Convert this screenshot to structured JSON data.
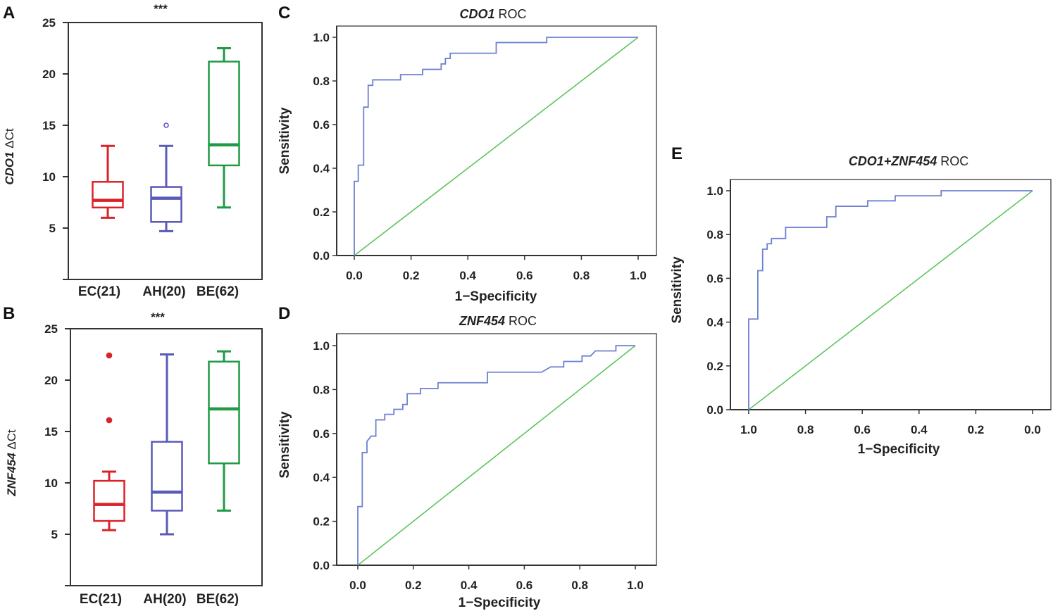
{
  "colors": {
    "EC": "#d9232a",
    "AH": "#5a5ab8",
    "BE": "#1f9a45",
    "roc": "#6e80d2",
    "ref": "#5ec45e",
    "axis": "#333333"
  },
  "chart_data": [
    {
      "panel": "A",
      "type": "box",
      "ylabel_italic": "CDO1",
      "ylabel_rest": " ΔCt",
      "significance": "***",
      "ylim": [
        0,
        25
      ],
      "yticks": [
        "5",
        "10",
        "15",
        "20",
        "25"
      ],
      "groups": [
        {
          "label": "EC(21)",
          "key": "EC",
          "whisker_low": 6.0,
          "q1": 7.0,
          "median": 7.7,
          "q3": 9.5,
          "whisker_high": 13.0,
          "outliers": [],
          "outlier_style": "filled"
        },
        {
          "label": "AH(20)",
          "key": "AH",
          "whisker_low": 4.7,
          "q1": 5.6,
          "median": 7.9,
          "q3": 9.0,
          "whisker_high": 13.0,
          "outliers": [
            15.0
          ],
          "outlier_style": "open"
        },
        {
          "label": "BE(62)",
          "key": "BE",
          "whisker_low": 7.0,
          "q1": 11.1,
          "median": 13.1,
          "q3": 21.2,
          "whisker_high": 22.5,
          "outliers": [],
          "outlier_style": "filled"
        }
      ]
    },
    {
      "panel": "B",
      "type": "box",
      "ylabel_italic": "ZNF454",
      "ylabel_rest": " ΔCt",
      "significance": "***",
      "ylim": [
        0,
        25
      ],
      "yticks": [
        "5",
        "10",
        "15",
        "20",
        "25"
      ],
      "groups": [
        {
          "label": "EC(21)",
          "key": "EC",
          "whisker_low": 5.4,
          "q1": 6.3,
          "median": 7.9,
          "q3": 10.2,
          "whisker_high": 11.1,
          "outliers": [
            16.1,
            22.4
          ],
          "outlier_style": "filled"
        },
        {
          "label": "AH(20)",
          "key": "AH",
          "whisker_low": 5.0,
          "q1": 7.3,
          "median": 9.1,
          "q3": 14.0,
          "whisker_high": 22.5,
          "outliers": [],
          "outlier_style": "filled"
        },
        {
          "label": "BE(62)",
          "key": "BE",
          "whisker_low": 7.3,
          "q1": 11.9,
          "median": 17.2,
          "q3": 21.8,
          "whisker_high": 22.8,
          "outliers": [],
          "outlier_style": "filled"
        }
      ]
    },
    {
      "panel": "C",
      "type": "line",
      "title_italic": "CDO1",
      "title_rest": " ROC",
      "xlabel": "1−Specificity",
      "ylabel": "Sensitivity",
      "xlim": [
        0,
        1
      ],
      "ylim": [
        0,
        1
      ],
      "xticks": [
        "0.0",
        "0.2",
        "0.4",
        "0.6",
        "0.8",
        "1.0"
      ],
      "yticks": [
        "0.0",
        "0.2",
        "0.4",
        "0.6",
        "0.8",
        "1.0"
      ],
      "roc": [
        [
          0,
          0
        ],
        [
          0,
          0.34
        ],
        [
          0.014,
          0.34
        ],
        [
          0.014,
          0.414
        ],
        [
          0.033,
          0.414
        ],
        [
          0.033,
          0.68
        ],
        [
          0.049,
          0.68
        ],
        [
          0.049,
          0.78
        ],
        [
          0.065,
          0.78
        ],
        [
          0.065,
          0.805
        ],
        [
          0.163,
          0.805
        ],
        [
          0.163,
          0.829
        ],
        [
          0.241,
          0.829
        ],
        [
          0.241,
          0.853
        ],
        [
          0.306,
          0.853
        ],
        [
          0.306,
          0.878
        ],
        [
          0.321,
          0.878
        ],
        [
          0.321,
          0.903
        ],
        [
          0.338,
          0.903
        ],
        [
          0.338,
          0.927
        ],
        [
          0.5,
          0.927
        ],
        [
          0.5,
          0.976
        ],
        [
          0.678,
          0.976
        ],
        [
          0.678,
          1
        ],
        [
          1,
          1
        ]
      ],
      "reference": [
        [
          0,
          0
        ],
        [
          1,
          1
        ]
      ]
    },
    {
      "panel": "D",
      "type": "line",
      "title_italic": "ZNF454",
      "title_rest": " ROC",
      "xlabel": "1−Specificity",
      "ylabel": "Sensitivity",
      "xlim": [
        0,
        1
      ],
      "ylim": [
        0,
        1
      ],
      "xticks": [
        "0.0",
        "0.2",
        "0.4",
        "0.6",
        "0.8",
        "1.0"
      ],
      "yticks": [
        "0.0",
        "0.2",
        "0.4",
        "0.6",
        "0.8",
        "1.0"
      ],
      "roc": [
        [
          0,
          0
        ],
        [
          0,
          0.267
        ],
        [
          0.016,
          0.267
        ],
        [
          0.016,
          0.513
        ],
        [
          0.033,
          0.513
        ],
        [
          0.033,
          0.564
        ],
        [
          0.048,
          0.588
        ],
        [
          0.065,
          0.588
        ],
        [
          0.065,
          0.662
        ],
        [
          0.097,
          0.662
        ],
        [
          0.097,
          0.687
        ],
        [
          0.13,
          0.687
        ],
        [
          0.13,
          0.71
        ],
        [
          0.162,
          0.71
        ],
        [
          0.162,
          0.732
        ],
        [
          0.178,
          0.732
        ],
        [
          0.178,
          0.781
        ],
        [
          0.226,
          0.781
        ],
        [
          0.226,
          0.805
        ],
        [
          0.289,
          0.805
        ],
        [
          0.289,
          0.831
        ],
        [
          0.467,
          0.831
        ],
        [
          0.467,
          0.879
        ],
        [
          0.662,
          0.879
        ],
        [
          0.695,
          0.903
        ],
        [
          0.742,
          0.903
        ],
        [
          0.742,
          0.928
        ],
        [
          0.808,
          0.928
        ],
        [
          0.808,
          0.953
        ],
        [
          0.839,
          0.953
        ],
        [
          0.856,
          0.976
        ],
        [
          0.93,
          0.976
        ],
        [
          0.93,
          1
        ],
        [
          1,
          1
        ]
      ],
      "reference": [
        [
          0,
          0
        ],
        [
          1,
          1
        ]
      ]
    },
    {
      "panel": "E",
      "type": "line",
      "title_italic": "CDO1+ZNF454",
      "title_rest": " ROC",
      "xlabel": "1−Specificity",
      "ylabel": "Sensitivity",
      "xlim": [
        1,
        0
      ],
      "ylim": [
        0,
        1
      ],
      "xticks": [
        "1.0",
        "0.8",
        "0.6",
        "0.4",
        "0.2",
        "0.0"
      ],
      "yticks": [
        "0.0",
        "0.2",
        "0.4",
        "0.6",
        "0.8",
        "1.0"
      ],
      "roc": [
        [
          0,
          0
        ],
        [
          0,
          0.414
        ],
        [
          0.032,
          0.414
        ],
        [
          0.032,
          0.635
        ],
        [
          0.049,
          0.635
        ],
        [
          0.049,
          0.733
        ],
        [
          0.065,
          0.733
        ],
        [
          0.065,
          0.758
        ],
        [
          0.08,
          0.758
        ],
        [
          0.08,
          0.782
        ],
        [
          0.13,
          0.782
        ],
        [
          0.13,
          0.833
        ],
        [
          0.275,
          0.833
        ],
        [
          0.275,
          0.881
        ],
        [
          0.307,
          0.881
        ],
        [
          0.307,
          0.929
        ],
        [
          0.419,
          0.929
        ],
        [
          0.419,
          0.954
        ],
        [
          0.516,
          0.954
        ],
        [
          0.516,
          0.977
        ],
        [
          0.678,
          0.977
        ],
        [
          0.678,
          1
        ],
        [
          1,
          1
        ]
      ],
      "reference": [
        [
          0,
          0
        ],
        [
          1,
          1
        ]
      ]
    }
  ]
}
